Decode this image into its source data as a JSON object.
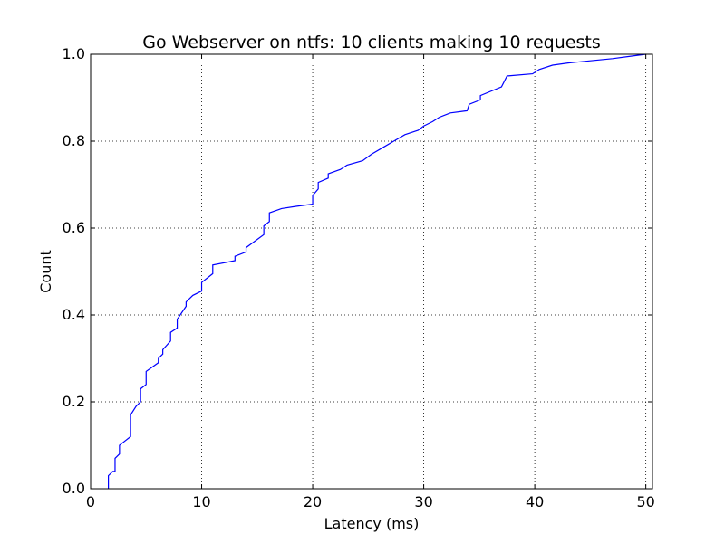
{
  "chart_data": {
    "type": "line",
    "title": "Go Webserver on ntfs: 10 clients making 10 requests",
    "xlabel": "Latency (ms)",
    "ylabel": "Count",
    "xlim": [
      0,
      50.6
    ],
    "ylim": [
      0,
      1.0
    ],
    "xticks": [
      0,
      10,
      20,
      30,
      40,
      50
    ],
    "yticks": [
      0.0,
      0.2,
      0.4,
      0.6,
      0.8,
      1.0
    ],
    "xtick_labels": [
      "0",
      "10",
      "20",
      "30",
      "40",
      "50"
    ],
    "ytick_labels": [
      "0.0",
      "0.2",
      "0.4",
      "0.6",
      "0.8",
      "1.0"
    ],
    "grid": true,
    "series": [
      {
        "color": "#0000ff",
        "x": [
          1.6,
          1.6,
          2.0,
          2.2,
          2.2,
          2.6,
          2.6,
          3.1,
          3.6,
          3.6,
          4.1,
          4.5,
          4.5,
          5.0,
          5.0,
          6.1,
          6.1,
          6.5,
          6.5,
          7.2,
          7.2,
          7.8,
          7.8,
          8.6,
          8.6,
          9.2,
          10.0,
          10.0,
          11.0,
          11.0,
          13.0,
          13.0,
          14.0,
          14.0,
          15.6,
          15.6,
          16.1,
          16.1,
          17.2,
          18.5,
          20.0,
          20.0,
          20.5,
          20.5,
          21.4,
          21.4,
          22.5,
          23.1,
          24.5,
          25.3,
          26.3,
          27.3,
          28.3,
          29.5,
          30.0,
          30.8,
          31.4,
          32.4,
          33.9,
          34.1,
          35.1,
          35.1,
          37.0,
          37.3,
          37.5,
          39.8,
          40.4,
          41.6,
          43.0,
          45.0,
          47.0,
          48.5,
          50.0
        ],
        "y": [
          0.0,
          0.03,
          0.04,
          0.04,
          0.07,
          0.08,
          0.1,
          0.11,
          0.12,
          0.17,
          0.19,
          0.2,
          0.23,
          0.24,
          0.27,
          0.29,
          0.3,
          0.31,
          0.32,
          0.34,
          0.36,
          0.37,
          0.39,
          0.42,
          0.43,
          0.445,
          0.455,
          0.475,
          0.495,
          0.515,
          0.525,
          0.535,
          0.545,
          0.555,
          0.585,
          0.605,
          0.615,
          0.635,
          0.645,
          0.65,
          0.655,
          0.675,
          0.69,
          0.705,
          0.715,
          0.725,
          0.735,
          0.745,
          0.755,
          0.77,
          0.785,
          0.8,
          0.815,
          0.825,
          0.835,
          0.845,
          0.855,
          0.865,
          0.87,
          0.885,
          0.895,
          0.905,
          0.925,
          0.94,
          0.95,
          0.955,
          0.965,
          0.975,
          0.98,
          0.985,
          0.99,
          0.995,
          1.0
        ]
      }
    ]
  }
}
